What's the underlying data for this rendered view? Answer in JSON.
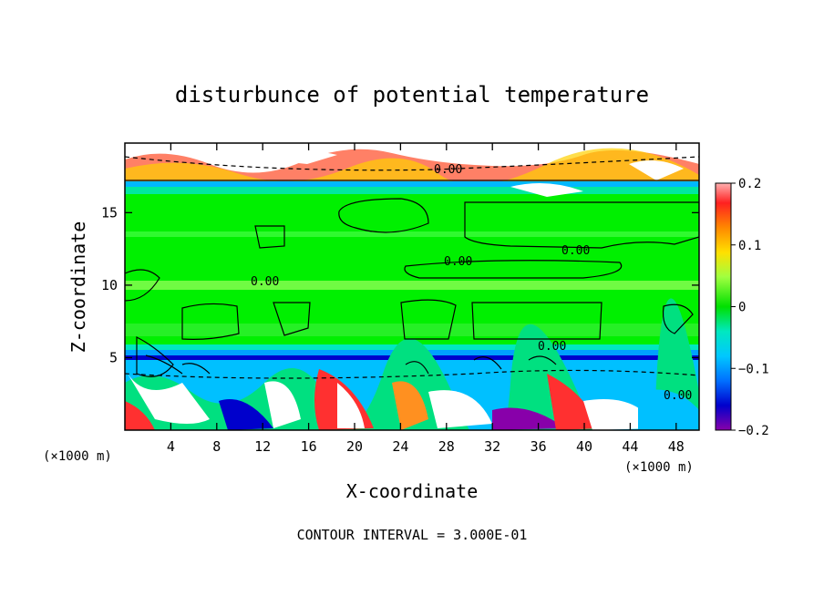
{
  "chart_data": {
    "type": "heatmap",
    "title": "disturbunce of potential temperature",
    "xlabel": "X-coordinate",
    "ylabel": "Z-coordinate",
    "x_unit": "(×1000 m)",
    "x_unit_right": "(×1000 m)",
    "xlim": [
      0,
      50
    ],
    "ylim": [
      0,
      19.8
    ],
    "x_ticks": [
      4,
      8,
      12,
      16,
      20,
      24,
      28,
      32,
      36,
      40,
      44,
      48
    ],
    "y_ticks": [
      5,
      10,
      15
    ],
    "colorbar": {
      "range": [
        -0.2,
        0.2
      ],
      "tick_labels": [
        "0.2",
        "0.1",
        "0",
        "−0.1",
        "−0.2"
      ],
      "tick_values": [
        0.2,
        0.1,
        0,
        -0.1,
        -0.2
      ]
    },
    "contour_labels": [
      "0.00",
      "0.00",
      "0.00",
      "0.00",
      "0.00",
      "0.00"
    ],
    "footer": "CONTOUR INTERVAL = 3.000E-01"
  },
  "colors": {
    "background_field": "#00f000",
    "band": "#88ff44",
    "cold": "#0000cc",
    "warm": "#ff2020"
  }
}
